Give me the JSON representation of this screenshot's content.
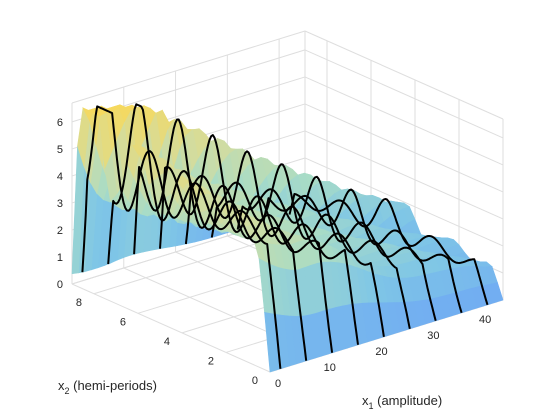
{
  "chart_data": {
    "type": "surface",
    "xlabel": {
      "base": "x",
      "sub": "1",
      "rest": " (amplitude)"
    },
    "ylabel": {
      "base": "x",
      "sub": "2",
      "rest": " (hemi-periods)"
    },
    "zlabel": "",
    "xlim": [
      0,
      45
    ],
    "ylim": [
      0,
      9
    ],
    "zlim": [
      0,
      6.7
    ],
    "xticks": [
      "0",
      "10",
      "20",
      "30",
      "40"
    ],
    "yticks": [
      "0",
      "2",
      "4",
      "6",
      "8"
    ],
    "zticks": [
      "0",
      "1",
      "2",
      "3",
      "4",
      "5",
      "6"
    ],
    "grid": true,
    "colormap": [
      "#6fa9f4",
      "#7fc6e6",
      "#a9dcc6",
      "#d2dca0",
      "#f6d95e"
    ],
    "contour_x_values": [
      2,
      7,
      12,
      17,
      22,
      27,
      32,
      37,
      42
    ],
    "surface": {
      "description_points": [
        {
          "x": 2,
          "peak_y": 8.0,
          "peak_z": 6.6
        },
        {
          "x": 7,
          "peak_y": 7.6,
          "peak_z": 5.6
        },
        {
          "x": 12,
          "peak_y": 7.0,
          "peak_z": 4.9
        },
        {
          "x": 17,
          "peak_y": 6.6,
          "peak_z": 4.3
        },
        {
          "x": 22,
          "peak_y": 6.2,
          "peak_z": 3.7
        },
        {
          "x": 27,
          "peak_y": 5.8,
          "peak_z": 3.2
        },
        {
          "x": 32,
          "peak_y": 5.4,
          "peak_z": 2.7
        },
        {
          "x": 37,
          "peak_y": 5.0,
          "peak_z": 2.2
        },
        {
          "x": 42,
          "peak_y": 4.6,
          "peak_z": 1.8
        }
      ]
    }
  }
}
